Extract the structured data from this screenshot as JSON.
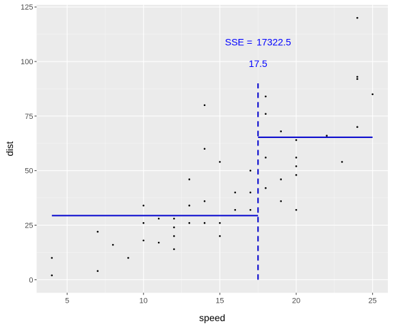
{
  "chart_data": {
    "type": "scatter",
    "title": "",
    "xlabel": "speed",
    "ylabel": "dist",
    "xlim": [
      3.0,
      26.0
    ],
    "ylim": [
      -6.0,
      126.0
    ],
    "x_ticks": [
      5,
      10,
      15,
      20,
      25
    ],
    "y_ticks": [
      0,
      25,
      50,
      75,
      100,
      125
    ],
    "grid": true,
    "colors": {
      "panel": "#ebebeb",
      "grid_major": "#ffffff",
      "grid_minor": "#f5f5f5",
      "points": "#000000",
      "lines": "#0000cd",
      "annotation": "#0000ff"
    },
    "points": [
      {
        "x": 4,
        "y": 2
      },
      {
        "x": 4,
        "y": 10
      },
      {
        "x": 7,
        "y": 4
      },
      {
        "x": 7,
        "y": 22
      },
      {
        "x": 8,
        "y": 16
      },
      {
        "x": 9,
        "y": 10
      },
      {
        "x": 10,
        "y": 18
      },
      {
        "x": 10,
        "y": 26
      },
      {
        "x": 10,
        "y": 34
      },
      {
        "x": 11,
        "y": 17
      },
      {
        "x": 11,
        "y": 28
      },
      {
        "x": 12,
        "y": 14
      },
      {
        "x": 12,
        "y": 20
      },
      {
        "x": 12,
        "y": 24
      },
      {
        "x": 12,
        "y": 28
      },
      {
        "x": 13,
        "y": 26
      },
      {
        "x": 13,
        "y": 34
      },
      {
        "x": 13,
        "y": 34
      },
      {
        "x": 13,
        "y": 46
      },
      {
        "x": 14,
        "y": 26
      },
      {
        "x": 14,
        "y": 36
      },
      {
        "x": 14,
        "y": 60
      },
      {
        "x": 14,
        "y": 80
      },
      {
        "x": 15,
        "y": 20
      },
      {
        "x": 15,
        "y": 26
      },
      {
        "x": 15,
        "y": 54
      },
      {
        "x": 16,
        "y": 32
      },
      {
        "x": 16,
        "y": 40
      },
      {
        "x": 17,
        "y": 32
      },
      {
        "x": 17,
        "y": 40
      },
      {
        "x": 17,
        "y": 50
      },
      {
        "x": 18,
        "y": 42
      },
      {
        "x": 18,
        "y": 56
      },
      {
        "x": 18,
        "y": 76
      },
      {
        "x": 18,
        "y": 84
      },
      {
        "x": 19,
        "y": 36
      },
      {
        "x": 19,
        "y": 46
      },
      {
        "x": 19,
        "y": 68
      },
      {
        "x": 20,
        "y": 32
      },
      {
        "x": 20,
        "y": 48
      },
      {
        "x": 20,
        "y": 52
      },
      {
        "x": 20,
        "y": 56
      },
      {
        "x": 20,
        "y": 64
      },
      {
        "x": 22,
        "y": 66
      },
      {
        "x": 23,
        "y": 54
      },
      {
        "x": 24,
        "y": 70
      },
      {
        "x": 24,
        "y": 92
      },
      {
        "x": 24,
        "y": 93
      },
      {
        "x": 24,
        "y": 120
      },
      {
        "x": 25,
        "y": 85
      }
    ],
    "split": {
      "x": 17.5,
      "y_from": 0,
      "y_to": 90,
      "label": "17.5"
    },
    "segments": [
      {
        "x_from": 4,
        "x_to": 17.5,
        "y": 29.4
      },
      {
        "x_from": 17.5,
        "x_to": 25,
        "y": 65.3
      }
    ],
    "annotations": {
      "sse_label": "SSE =",
      "sse_value": "17322.5",
      "sse_x": 17.5,
      "sse_y": 109,
      "split_label_x": 17.5,
      "split_label_y": 99
    }
  }
}
